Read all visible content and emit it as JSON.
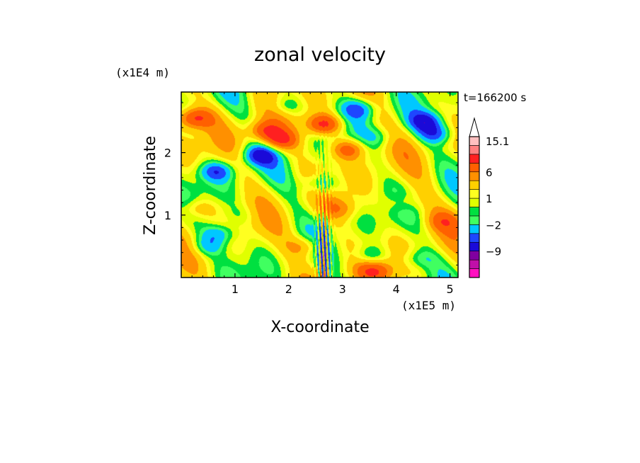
{
  "chart_data": {
    "type": "heatmap",
    "title": "zonal velocity",
    "xlabel": "X-coordinate",
    "ylabel": "Z-coordinate",
    "x_unit": "(x1E5 m)",
    "y_unit": "(x1E4 m)",
    "time_label": "t=166200 s",
    "xlim": [
      0,
      5.15
    ],
    "ylim": [
      0,
      2.97
    ],
    "x_ticks": [
      1,
      2,
      3,
      4,
      5
    ],
    "x_tick_labels": [
      "1",
      "2",
      "3",
      "4",
      "5"
    ],
    "y_ticks": [
      1,
      2
    ],
    "y_tick_labels": [
      "1",
      "2"
    ],
    "grid": false,
    "colorbar": {
      "labels": [
        {
          "value": 15.1,
          "text": "15.1"
        },
        {
          "value": 6,
          "text": "6"
        },
        {
          "value": 1,
          "text": "1"
        },
        {
          "value": -2,
          "text": "−2"
        },
        {
          "value": -9,
          "text": "−9"
        }
      ],
      "levels": [
        -15,
        -12,
        -9,
        -6,
        -4,
        -2,
        -1,
        0,
        1,
        2,
        4,
        6,
        9,
        12,
        15.1
      ],
      "colors": [
        "#ff10c0",
        "#c010a8",
        "#8000a0",
        "#1a0ad8",
        "#1e46ff",
        "#00c8ff",
        "#40ff60",
        "#00e040",
        "#e0ff00",
        "#ffff20",
        "#ffd000",
        "#ff9000",
        "#ff6000",
        "#ff2020",
        "#ff8080",
        "#ffc0c0"
      ],
      "extend": "max"
    },
    "features": [
      {
        "x": 2.65,
        "z": 2.45,
        "u": 9.0
      },
      {
        "x": 3.1,
        "z": 2.05,
        "u": 6.5
      },
      {
        "x": 1.55,
        "z": 2.35,
        "u": 7.0
      },
      {
        "x": 4.55,
        "z": 2.5,
        "u": -7.0
      },
      {
        "x": 4.75,
        "z": 2.3,
        "u": -6.0
      },
      {
        "x": 1.45,
        "z": 1.95,
        "u": -6.5
      },
      {
        "x": 0.65,
        "z": 1.7,
        "u": -6.0
      },
      {
        "x": 2.6,
        "z": 1.5,
        "u": -5.0
      },
      {
        "x": 3.3,
        "z": 2.7,
        "u": -5.5
      },
      {
        "x": 3.6,
        "z": 0.1,
        "u": 6.0
      },
      {
        "x": 3.5,
        "z": 0.35,
        "u": -4.0
      },
      {
        "x": 0.5,
        "z": 0.5,
        "u": -4.0
      },
      {
        "x": 0.7,
        "z": 0.7,
        "u": -5.0
      },
      {
        "x": 0.25,
        "z": 2.55,
        "u": 8.0
      },
      {
        "x": 1.95,
        "z": 2.75,
        "u": -3.5
      },
      {
        "x": 1.85,
        "z": 2.2,
        "u": 7.5
      },
      {
        "x": 4.9,
        "z": 0.9,
        "u": 4.0
      },
      {
        "x": 0.3,
        "z": 1.1,
        "u": 3.5
      },
      {
        "x": 1.1,
        "z": 1.0,
        "u": -1.5
      },
      {
        "x": 4.1,
        "z": 1.2,
        "u": 2.5
      },
      {
        "x": 2.3,
        "z": 0.5,
        "u": 4.0
      },
      {
        "x": 4.4,
        "z": 0.3,
        "u": -3.0
      },
      {
        "x": 3.7,
        "z": 2.25,
        "u": -2.5
      },
      {
        "x": 2.95,
        "z": 1.1,
        "u": 3.5
      }
    ],
    "background_value": 1.3
  }
}
